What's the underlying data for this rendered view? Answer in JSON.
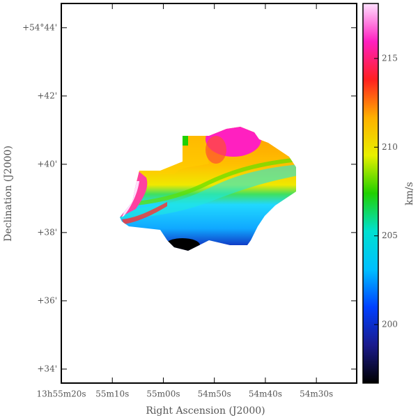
{
  "chart_data": {
    "type": "image",
    "x_label": "Right Ascension (J2000)",
    "y_label": "Declination (J2000)",
    "colorbar_label": "km/s",
    "xlim": [
      50120,
      50062.1
    ],
    "xticks": [
      {
        "value": 50120,
        "label": "13h55m20s"
      },
      {
        "value": 50110,
        "label": "55m10s"
      },
      {
        "value": 50100,
        "label": "55m00s"
      },
      {
        "value": 50090,
        "label": "54m50s"
      },
      {
        "value": 50080,
        "label": "54m40s"
      },
      {
        "value": 50070,
        "label": "54m30s"
      }
    ],
    "ylim": [
      3273.59,
      3284.71
    ],
    "yticks": [
      {
        "value": 3284,
        "label": "+54°44'"
      },
      {
        "value": 3282,
        "label": "+42'"
      },
      {
        "value": 3280,
        "label": "+40'"
      },
      {
        "value": 3278,
        "label": "+38'"
      },
      {
        "value": 3276,
        "label": "+36'"
      },
      {
        "value": 3274,
        "label": "+34'"
      }
    ],
    "clim": [
      196.7,
      218.1
    ],
    "cticks": [
      200,
      205,
      210,
      215
    ],
    "colormap": [
      "#000000",
      "#1a1a8c",
      "#0040ff",
      "#00c0ff",
      "#00e0d0",
      "#20d000",
      "#e8f000",
      "#ffb000",
      "#ff2020",
      "#ff20c0",
      "#ffe0ff"
    ]
  }
}
